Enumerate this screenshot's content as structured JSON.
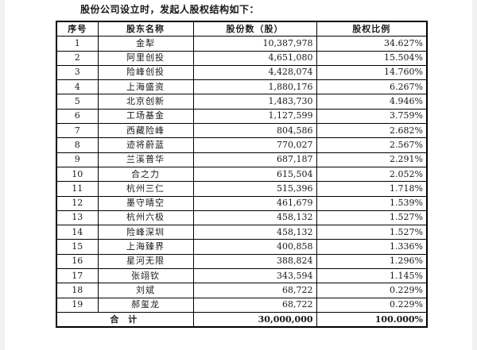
{
  "document": {
    "intro": "股份公司设立时，发起人股权结构如下："
  },
  "table": {
    "headers": [
      "序号",
      "股东名称",
      "股份数（股）",
      "股权比例"
    ],
    "rows": [
      {
        "no": "1",
        "name": "金犁",
        "shares": "10,387,978",
        "ratio": "34.627%"
      },
      {
        "no": "2",
        "name": "阿里创投",
        "shares": "4,651,080",
        "ratio": "15.504%"
      },
      {
        "no": "3",
        "name": "险峰创投",
        "shares": "4,428,074",
        "ratio": "14.760%"
      },
      {
        "no": "4",
        "name": "上海盛资",
        "shares": "1,880,176",
        "ratio": "6.267%"
      },
      {
        "no": "5",
        "name": "北京创新",
        "shares": "1,483,730",
        "ratio": "4.946%"
      },
      {
        "no": "6",
        "name": "工场基金",
        "shares": "1,127,599",
        "ratio": "3.759%"
      },
      {
        "no": "7",
        "name": "西藏险峰",
        "shares": "804,586",
        "ratio": "2.682%"
      },
      {
        "no": "8",
        "name": "迹将蔚蓝",
        "shares": "770,027",
        "ratio": "2.567%"
      },
      {
        "no": "9",
        "name": "兰溪普华",
        "shares": "687,187",
        "ratio": "2.291%"
      },
      {
        "no": "10",
        "name": "合之力",
        "shares": "615,504",
        "ratio": "2.052%"
      },
      {
        "no": "11",
        "name": "杭州三仁",
        "shares": "515,396",
        "ratio": "1.718%"
      },
      {
        "no": "12",
        "name": "墨守晴空",
        "shares": "461,679",
        "ratio": "1.539%"
      },
      {
        "no": "13",
        "name": "杭州六极",
        "shares": "458,132",
        "ratio": "1.527%"
      },
      {
        "no": "14",
        "name": "险峰深圳",
        "shares": "458,132",
        "ratio": "1.527%"
      },
      {
        "no": "15",
        "name": "上海臻界",
        "shares": "400,858",
        "ratio": "1.336%"
      },
      {
        "no": "16",
        "name": "星河无限",
        "shares": "388,824",
        "ratio": "1.296%"
      },
      {
        "no": "17",
        "name": "张翊钦",
        "shares": "343,594",
        "ratio": "1.145%"
      },
      {
        "no": "18",
        "name": "刘斌",
        "shares": "68,722",
        "ratio": "0.229%"
      },
      {
        "no": "19",
        "name": "郝玺龙",
        "shares": "68,722",
        "ratio": "0.229%"
      }
    ],
    "total": {
      "label": "合 计",
      "shares": "30,000,000",
      "ratio": "100.000%"
    }
  }
}
